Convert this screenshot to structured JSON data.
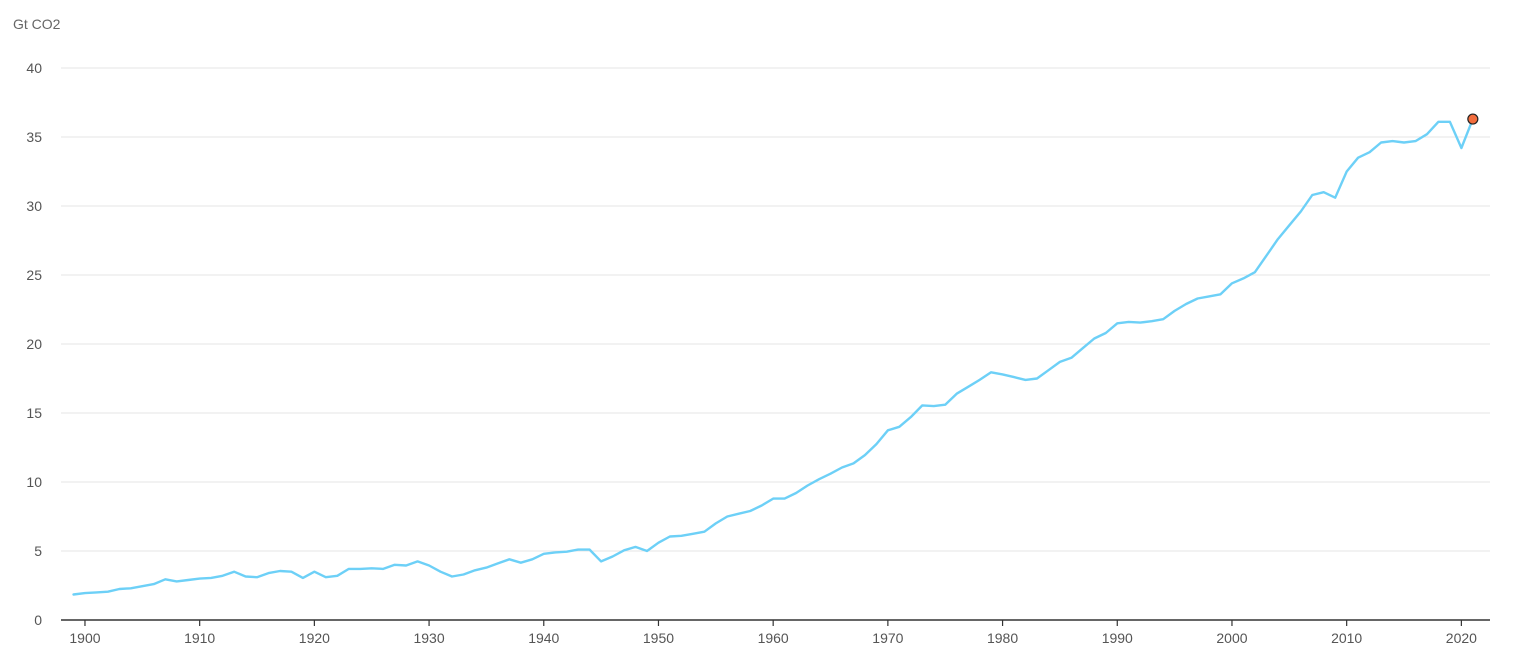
{
  "chart_data": {
    "type": "line",
    "ylabel": "Gt CO2",
    "ylim": [
      0,
      40
    ],
    "xlim": [
      1899,
      2022
    ],
    "y_ticks": [
      0,
      5,
      10,
      15,
      20,
      25,
      30,
      35,
      40
    ],
    "x_ticks": [
      1900,
      1910,
      1920,
      1930,
      1940,
      1950,
      1960,
      1970,
      1980,
      1990,
      2000,
      2010,
      2020
    ],
    "grid": true,
    "line_color": "#6dd0f7",
    "marker_color": "#f26d3d",
    "highlight_point": {
      "x": 2021,
      "y": 36.3
    },
    "series": [
      {
        "x": [
          1899,
          1900,
          1901,
          1902,
          1903,
          1904,
          1905,
          1906,
          1907,
          1908,
          1909,
          1910,
          1911,
          1912,
          1913,
          1914,
          1915,
          1916,
          1917,
          1918,
          1919,
          1920,
          1921,
          1922,
          1923,
          1924,
          1925,
          1926,
          1927,
          1928,
          1929,
          1930,
          1931,
          1932,
          1933,
          1934,
          1935,
          1936,
          1937,
          1938,
          1939,
          1940,
          1941,
          1942,
          1943,
          1944,
          1945,
          1946,
          1947,
          1948,
          1949,
          1950,
          1951,
          1952,
          1953,
          1954,
          1955,
          1956,
          1957,
          1958,
          1959,
          1960,
          1961,
          1962,
          1963,
          1964,
          1965,
          1966,
          1967,
          1968,
          1969,
          1970,
          1971,
          1972,
          1973,
          1974,
          1975,
          1976,
          1977,
          1978,
          1979,
          1980,
          1981,
          1982,
          1983,
          1984,
          1985,
          1986,
          1987,
          1988,
          1989,
          1990,
          1991,
          1992,
          1993,
          1994,
          1995,
          1996,
          1997,
          1998,
          1999,
          2000,
          2001,
          2002,
          2003,
          2004,
          2005,
          2006,
          2007,
          2008,
          2009,
          2010,
          2011,
          2012,
          2013,
          2014,
          2015,
          2016,
          2017,
          2018,
          2019,
          2020,
          2021
        ],
        "y": [
          1.85,
          1.95,
          2.0,
          2.05,
          2.25,
          2.3,
          2.45,
          2.6,
          2.95,
          2.8,
          2.9,
          3.0,
          3.05,
          3.2,
          3.5,
          3.15,
          3.1,
          3.4,
          3.55,
          3.5,
          3.05,
          3.5,
          3.1,
          3.2,
          3.7,
          3.7,
          3.75,
          3.7,
          4.0,
          3.95,
          4.25,
          3.95,
          3.5,
          3.15,
          3.3,
          3.6,
          3.8,
          4.1,
          4.4,
          4.15,
          4.4,
          4.8,
          4.9,
          4.95,
          5.1,
          5.1,
          4.25,
          4.6,
          5.05,
          5.3,
          5.0,
          5.6,
          6.05,
          6.1,
          6.25,
          6.4,
          7.0,
          7.5,
          7.7,
          7.9,
          8.3,
          8.8,
          8.8,
          9.2,
          9.75,
          10.2,
          10.6,
          11.05,
          11.35,
          11.95,
          12.75,
          13.75,
          14.0,
          14.7,
          15.55,
          15.5,
          15.6,
          16.4,
          16.9,
          17.4,
          17.95,
          17.8,
          17.6,
          17.4,
          17.5,
          18.1,
          18.7,
          19.0,
          19.7,
          20.4,
          20.8,
          21.5,
          21.6,
          21.55,
          21.65,
          21.8,
          22.4,
          22.9,
          23.3,
          23.45,
          23.6,
          24.4,
          24.75,
          25.2,
          26.4,
          27.6,
          28.6,
          29.6,
          30.8,
          31.0,
          30.6,
          32.5,
          33.5,
          33.9,
          34.6,
          34.7,
          34.6,
          34.7,
          35.2,
          36.1,
          36.1,
          34.2,
          36.3
        ]
      }
    ]
  }
}
